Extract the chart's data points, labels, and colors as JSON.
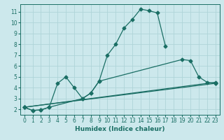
{
  "xlabel": "Humidex (Indice chaleur)",
  "bg_color": "#cce8ec",
  "grid_color": "#afd4d8",
  "line_color": "#1a6e64",
  "xlim": [
    -0.5,
    23.5
  ],
  "ylim": [
    1.5,
    11.7
  ],
  "xticks": [
    0,
    1,
    2,
    3,
    4,
    5,
    6,
    7,
    8,
    9,
    10,
    11,
    12,
    13,
    14,
    15,
    16,
    17,
    18,
    19,
    20,
    21,
    22,
    23
  ],
  "yticks": [
    2,
    3,
    4,
    5,
    6,
    7,
    8,
    9,
    10,
    11
  ],
  "curves": [
    {
      "x": [
        0,
        1,
        2,
        3,
        4,
        5,
        6,
        7,
        8,
        9,
        10,
        11,
        12,
        13,
        14,
        15,
        16,
        17
      ],
      "y": [
        2.2,
        1.9,
        1.95,
        2.2,
        4.4,
        5.0,
        4.0,
        3.0,
        3.5,
        4.6,
        7.0,
        8.0,
        9.5,
        10.3,
        11.25,
        11.1,
        10.9,
        7.8
      ]
    },
    {
      "x": [
        0,
        1,
        2,
        3,
        7,
        8,
        9,
        19,
        20,
        21,
        22,
        23
      ],
      "y": [
        2.2,
        1.9,
        1.95,
        2.2,
        3.0,
        3.5,
        4.6,
        6.6,
        6.5,
        5.0,
        4.5,
        4.4
      ]
    },
    {
      "x": [
        0,
        23
      ],
      "y": [
        2.2,
        4.4
      ]
    },
    {
      "x": [
        0,
        23
      ],
      "y": [
        2.2,
        4.5
      ]
    }
  ],
  "marker": "D",
  "markersize": 2.5,
  "linewidth": 0.9,
  "xlabel_fontsize": 6.5,
  "tick_fontsize": 5.5
}
